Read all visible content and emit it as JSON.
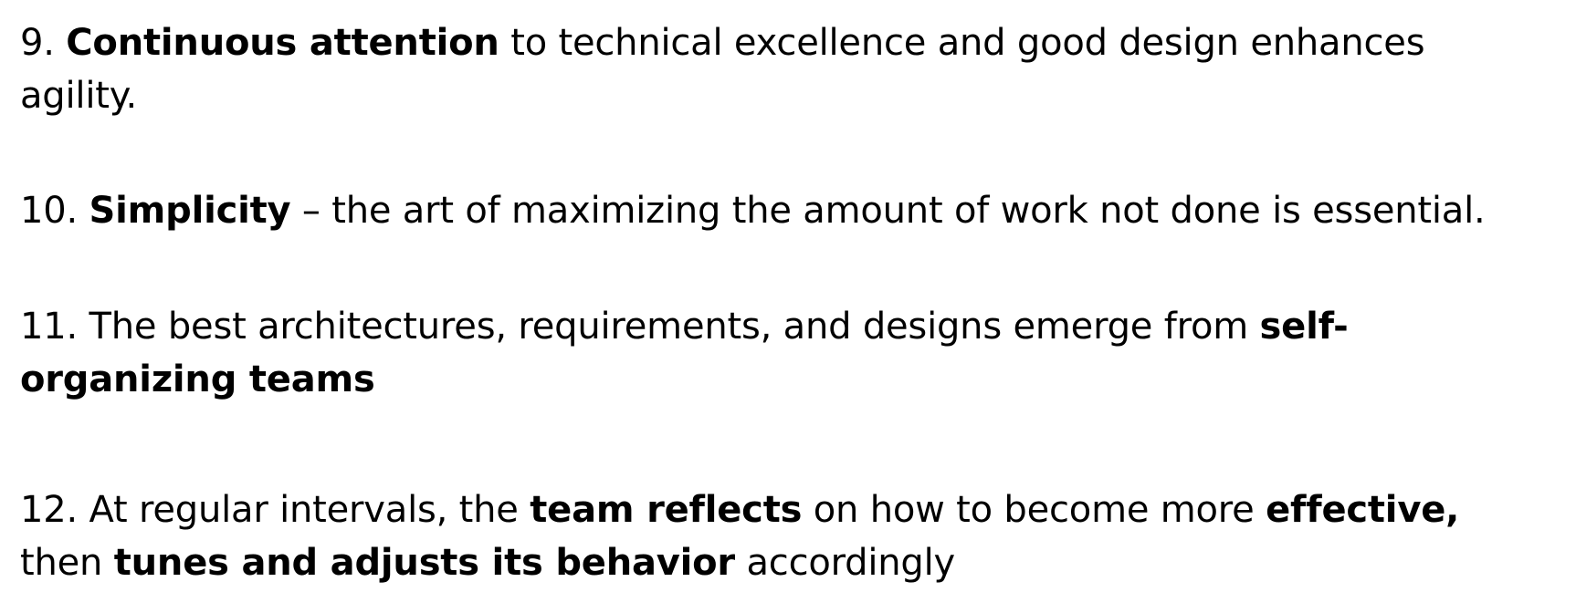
{
  "principles": {
    "p9": {
      "number": "9.",
      "bold1": "Continuous attention",
      "text1": "to technical excellence and good design enhances",
      "text2": "agility."
    },
    "p10": {
      "number": "10.",
      "bold1": "Simplicity",
      "text1": "– the art of maximizing the amount of work not done is essential."
    },
    "p11": {
      "number": "11.",
      "text1": "The best architectures, requirements, and designs emerge from",
      "bold1": "self-",
      "bold2": "organizing teams"
    },
    "p12": {
      "number": "12.",
      "text1": "At regular intervals, the",
      "bold1": "team reflects",
      "text2": "on how to become more",
      "bold2": "effective,",
      "text3": "then",
      "bold3": "tunes and adjusts its behavior",
      "text4": "accordingly"
    }
  }
}
